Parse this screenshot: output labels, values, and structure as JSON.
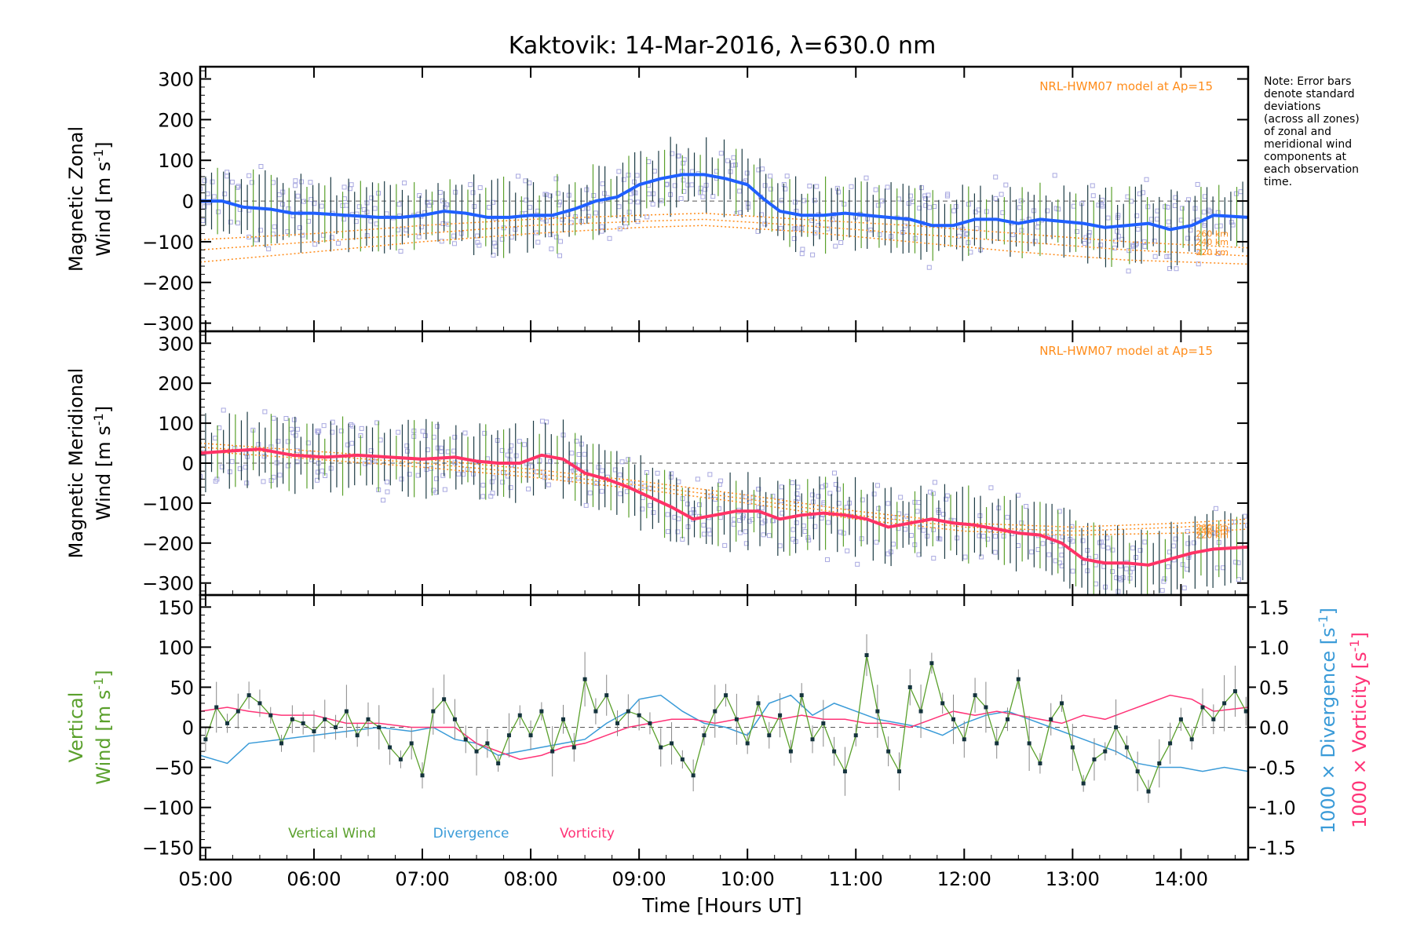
{
  "figure": {
    "title": "Kaktovik: 14-Mar-2016, λ=630.0 nm",
    "xlabel": "Time [Hours UT]",
    "note": [
      "Note: Error bars",
      "denote standard",
      "deviations",
      "(across all zones)",
      "of zonal and",
      "meridional wind",
      "components at",
      "each observation",
      "time."
    ],
    "colors": {
      "zonal": "#1f5fff",
      "meridional": "#ff3366",
      "vertical": "#5aa02c",
      "divergence": "#3a9bd8",
      "vorticity": "#ff3377",
      "model": "#ff8c1a",
      "scatter": "#a8a8e0",
      "errorbar": "#1c3b44"
    }
  },
  "chart_data": [
    {
      "type": "line",
      "panel": "zonal",
      "ylabel_line1": "Magnetic Zonal",
      "ylabel_line2": "Wind [m s",
      "ylabel_sup": "-1",
      "ylabel_close": "]",
      "model_label": "NRL-HWM07 model at Ap=15",
      "model_altitudes": [
        "260 km",
        "240 km",
        "220 km"
      ],
      "ylim": [
        -320,
        330
      ],
      "yticks": [
        300,
        200,
        100,
        0,
        -100,
        -200,
        -300
      ],
      "xlim": [
        4.95,
        14.62
      ],
      "xticks": [
        "05:00",
        "06:00",
        "07:00",
        "08:00",
        "09:00",
        "10:00",
        "11:00",
        "12:00",
        "13:00",
        "14:00"
      ],
      "mean": {
        "x": [
          4.95,
          5.15,
          5.35,
          5.6,
          5.8,
          6.0,
          6.3,
          6.6,
          6.8,
          7.0,
          7.2,
          7.4,
          7.6,
          7.8,
          8.0,
          8.2,
          8.4,
          8.6,
          8.8,
          9.0,
          9.2,
          9.4,
          9.6,
          9.8,
          10.0,
          10.15,
          10.3,
          10.5,
          10.7,
          10.9,
          11.1,
          11.3,
          11.5,
          11.7,
          11.9,
          12.1,
          12.3,
          12.5,
          12.7,
          12.9,
          13.1,
          13.3,
          13.5,
          13.7,
          13.9,
          14.1,
          14.3,
          14.62
        ],
        "y": [
          0,
          0,
          -15,
          -20,
          -30,
          -30,
          -35,
          -40,
          -40,
          -35,
          -25,
          -30,
          -40,
          -40,
          -35,
          -35,
          -20,
          0,
          10,
          40,
          55,
          65,
          65,
          55,
          40,
          5,
          -25,
          -35,
          -35,
          -30,
          -35,
          -40,
          -45,
          -60,
          -60,
          -45,
          -45,
          -55,
          -45,
          -50,
          -55,
          -65,
          -60,
          -55,
          -70,
          -60,
          -35,
          -40
        ]
      },
      "model": [
        {
          "name": "260 km",
          "x": [
            4.95,
            6.0,
            7.0,
            8.0,
            9.0,
            9.6,
            10.5,
            11.5,
            12.5,
            13.5,
            14.62
          ],
          "y": [
            -95,
            -80,
            -60,
            -45,
            -35,
            -30,
            -45,
            -60,
            -80,
            -100,
            -115
          ]
        },
        {
          "name": "240 km",
          "x": [
            4.95,
            6.0,
            7.0,
            8.0,
            9.0,
            9.6,
            10.5,
            11.5,
            12.5,
            13.5,
            14.62
          ],
          "y": [
            -120,
            -100,
            -80,
            -60,
            -50,
            -45,
            -60,
            -80,
            -100,
            -120,
            -135
          ]
        },
        {
          "name": "220 km",
          "x": [
            4.95,
            6.0,
            7.0,
            8.0,
            9.0,
            9.6,
            10.5,
            11.5,
            12.5,
            13.5,
            14.62
          ],
          "y": [
            -150,
            -125,
            -100,
            -80,
            -65,
            -60,
            -75,
            -100,
            -125,
            -145,
            -155
          ]
        }
      ]
    },
    {
      "type": "line",
      "panel": "meridional",
      "ylabel_line1": "Magnetic Meridional",
      "ylabel_line2": "Wind [m s",
      "ylabel_sup": "-1",
      "ylabel_close": "]",
      "model_label": "NRL-HWM07 model at Ap=15",
      "model_altitudes": [
        "260 km",
        "240 km",
        "220 km"
      ],
      "ylim": [
        -330,
        330
      ],
      "yticks": [
        300,
        200,
        100,
        0,
        -100,
        -200,
        -300
      ],
      "xlim": [
        4.95,
        14.62
      ],
      "mean": {
        "x": [
          4.95,
          5.2,
          5.5,
          5.8,
          6.1,
          6.4,
          6.7,
          7.0,
          7.3,
          7.5,
          7.7,
          7.9,
          8.1,
          8.3,
          8.5,
          8.7,
          8.9,
          9.1,
          9.3,
          9.5,
          9.7,
          9.9,
          10.1,
          10.3,
          10.5,
          10.7,
          10.9,
          11.1,
          11.3,
          11.5,
          11.7,
          11.9,
          12.1,
          12.3,
          12.5,
          12.7,
          12.9,
          13.1,
          13.3,
          13.5,
          13.7,
          13.9,
          14.1,
          14.3,
          14.62
        ],
        "y": [
          25,
          30,
          35,
          20,
          15,
          20,
          15,
          10,
          15,
          5,
          0,
          0,
          20,
          10,
          -25,
          -40,
          -60,
          -85,
          -110,
          -140,
          -130,
          -120,
          -120,
          -140,
          -130,
          -125,
          -130,
          -140,
          -160,
          -150,
          -140,
          -150,
          -155,
          -165,
          -175,
          -180,
          -200,
          -240,
          -250,
          -250,
          -255,
          -240,
          -225,
          -215,
          -210
        ]
      },
      "model": [
        {
          "name": "260 km",
          "x": [
            4.95,
            6.0,
            7.0,
            8.0,
            9.0,
            10.0,
            11.0,
            12.0,
            13.0,
            14.0,
            14.62
          ],
          "y": [
            50,
            30,
            10,
            -15,
            -45,
            -80,
            -120,
            -150,
            -160,
            -150,
            -140
          ]
        },
        {
          "name": "240 km",
          "x": [
            4.95,
            6.0,
            7.0,
            8.0,
            9.0,
            10.0,
            11.0,
            12.0,
            13.0,
            14.0,
            14.62
          ],
          "y": [
            40,
            20,
            0,
            -25,
            -55,
            -90,
            -130,
            -160,
            -170,
            -160,
            -150
          ]
        },
        {
          "name": "220 km",
          "x": [
            4.95,
            6.0,
            7.0,
            8.0,
            9.0,
            10.0,
            11.0,
            12.0,
            13.0,
            14.0,
            14.62
          ],
          "y": [
            30,
            10,
            -10,
            -35,
            -65,
            -100,
            -140,
            -170,
            -180,
            -175,
            -165
          ]
        }
      ]
    },
    {
      "type": "line",
      "panel": "vertical",
      "ylabel_line1": "Vertical",
      "ylabel_line2": "Wind [m s",
      "ylabel_sup": "-1",
      "ylabel_close": "]",
      "y2label_div": "1000 × Divergence [s",
      "y2label_vort": "1000 × Vorticity [s",
      "y2_sup": "-1",
      "y2_close": "]",
      "ylim": [
        -165,
        165
      ],
      "yticks": [
        150,
        100,
        50,
        0,
        -50,
        -100,
        -150
      ],
      "y2lim": [
        -1.65,
        1.65
      ],
      "y2ticks": [
        "1.5",
        "1.0",
        "0.5",
        "0.0",
        "-0.5",
        "-1.0",
        "-1.5"
      ],
      "y2tick_values": [
        1.5,
        1.0,
        0.5,
        0.0,
        -0.5,
        -1.0,
        -1.5
      ],
      "xlim": [
        4.95,
        14.62
      ],
      "legend": [
        "Vertical Wind",
        "Divergence",
        "Vorticity"
      ],
      "vertical_wind": {
        "x": [
          5.0,
          5.1,
          5.2,
          5.3,
          5.4,
          5.5,
          5.6,
          5.7,
          5.8,
          5.9,
          6.0,
          6.1,
          6.2,
          6.3,
          6.4,
          6.5,
          6.6,
          6.7,
          6.8,
          6.9,
          7.0,
          7.1,
          7.2,
          7.3,
          7.4,
          7.5,
          7.6,
          7.7,
          7.8,
          7.9,
          8.0,
          8.1,
          8.2,
          8.3,
          8.4,
          8.5,
          8.6,
          8.7,
          8.8,
          8.9,
          9.0,
          9.1,
          9.2,
          9.3,
          9.4,
          9.5,
          9.6,
          9.7,
          9.8,
          9.9,
          10.0,
          10.1,
          10.2,
          10.3,
          10.4,
          10.5,
          10.6,
          10.7,
          10.8,
          10.9,
          11.0,
          11.1,
          11.2,
          11.3,
          11.4,
          11.5,
          11.6,
          11.7,
          11.8,
          11.9,
          12.0,
          12.1,
          12.2,
          12.3,
          12.4,
          12.5,
          12.6,
          12.7,
          12.8,
          12.9,
          13.0,
          13.1,
          13.2,
          13.3,
          13.4,
          13.5,
          13.6,
          13.7,
          13.8,
          13.9,
          14.0,
          14.1,
          14.2,
          14.3,
          14.4,
          14.5,
          14.6
        ],
        "y": [
          -15,
          25,
          5,
          20,
          40,
          30,
          15,
          -20,
          10,
          5,
          -5,
          10,
          0,
          20,
          -10,
          10,
          0,
          -25,
          -40,
          -20,
          -60,
          20,
          35,
          10,
          -15,
          -30,
          -20,
          -45,
          -10,
          15,
          -10,
          20,
          -30,
          10,
          -25,
          60,
          20,
          40,
          5,
          20,
          15,
          5,
          -25,
          -20,
          -40,
          -60,
          -10,
          20,
          40,
          10,
          -20,
          30,
          -10,
          15,
          -30,
          40,
          -15,
          5,
          -30,
          -55,
          -10,
          90,
          20,
          -30,
          -55,
          50,
          20,
          80,
          30,
          10,
          -15,
          40,
          25,
          -20,
          10,
          60,
          -20,
          -45,
          10,
          30,
          -25,
          -70,
          -40,
          -30,
          0,
          -25,
          -55,
          -80,
          -45,
          -20,
          10,
          -15,
          25,
          10,
          30,
          45,
          20
        ]
      },
      "divergence": {
        "x": [
          4.95,
          5.2,
          5.4,
          5.7,
          6.0,
          6.3,
          6.6,
          6.9,
          7.1,
          7.3,
          7.5,
          7.7,
          7.9,
          8.1,
          8.3,
          8.5,
          8.7,
          8.9,
          9.0,
          9.2,
          9.4,
          9.6,
          9.8,
          10.0,
          10.2,
          10.4,
          10.6,
          10.8,
          11.0,
          11.2,
          11.4,
          11.6,
          11.8,
          12.0,
          12.2,
          12.4,
          12.6,
          12.8,
          13.0,
          13.2,
          13.4,
          13.6,
          13.8,
          14.0,
          14.2,
          14.4,
          14.62
        ],
        "y": [
          -0.35,
          -0.45,
          -0.2,
          -0.15,
          -0.1,
          -0.05,
          0.0,
          -0.05,
          0.0,
          -0.15,
          -0.2,
          -0.35,
          -0.3,
          -0.25,
          -0.2,
          -0.15,
          0.05,
          0.2,
          0.35,
          0.4,
          0.2,
          0.05,
          0.0,
          -0.1,
          0.3,
          0.4,
          0.15,
          0.3,
          0.2,
          0.1,
          0.05,
          0.0,
          -0.1,
          0.05,
          0.15,
          0.2,
          0.1,
          0.0,
          -0.1,
          -0.2,
          -0.3,
          -0.45,
          -0.5,
          -0.5,
          -0.55,
          -0.5,
          -0.55
        ]
      },
      "vorticity": {
        "x": [
          4.95,
          5.2,
          5.4,
          5.7,
          6.0,
          6.3,
          6.6,
          6.9,
          7.1,
          7.3,
          7.5,
          7.7,
          7.9,
          8.1,
          8.3,
          8.5,
          8.7,
          8.9,
          9.1,
          9.3,
          9.5,
          9.7,
          9.9,
          10.1,
          10.3,
          10.5,
          10.7,
          10.9,
          11.1,
          11.3,
          11.5,
          11.7,
          11.9,
          12.1,
          12.3,
          12.5,
          12.7,
          12.9,
          13.1,
          13.3,
          13.5,
          13.7,
          13.9,
          14.1,
          14.3,
          14.62
        ],
        "y": [
          0.2,
          0.25,
          0.2,
          0.15,
          0.15,
          0.05,
          0.05,
          0.0,
          0.0,
          0.0,
          -0.2,
          -0.3,
          -0.4,
          -0.35,
          -0.25,
          -0.2,
          -0.1,
          0.0,
          0.05,
          0.1,
          0.1,
          0.05,
          0.1,
          0.15,
          0.1,
          0.15,
          0.1,
          0.1,
          0.05,
          0.05,
          0.0,
          0.1,
          0.2,
          0.15,
          0.2,
          0.15,
          0.1,
          0.05,
          0.15,
          0.1,
          0.2,
          0.3,
          0.4,
          0.35,
          0.2,
          0.25
        ]
      }
    }
  ]
}
